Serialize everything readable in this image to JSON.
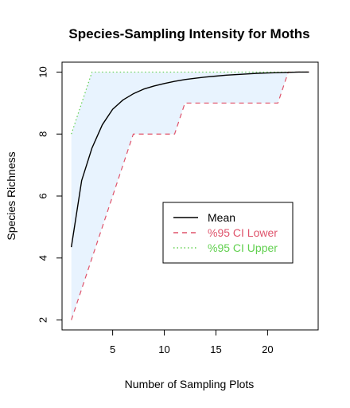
{
  "chart_data": {
    "type": "line",
    "title": "Species-Sampling Intensity for Moths",
    "xlabel": "Number of Sampling Plots",
    "ylabel": "Species Richness",
    "xlim": [
      0.1,
      24.9
    ],
    "ylim": [
      1.68,
      10.32
    ],
    "x_ticks": [
      5,
      10,
      15,
      20
    ],
    "y_ticks": [
      2,
      4,
      6,
      8,
      10
    ],
    "grid": false,
    "legend_position": "right-center",
    "ci_band_color": "#E8F3FE",
    "x": [
      1,
      2,
      3,
      4,
      5,
      6,
      7,
      8,
      9,
      10,
      11,
      12,
      13,
      14,
      15,
      16,
      17,
      18,
      19,
      20,
      21,
      22,
      23,
      24
    ],
    "series": [
      {
        "name": "Mean",
        "color": "#000000",
        "dash": "solid",
        "values": [
          4.35,
          6.5,
          7.55,
          8.3,
          8.8,
          9.1,
          9.3,
          9.45,
          9.55,
          9.63,
          9.7,
          9.76,
          9.8,
          9.84,
          9.87,
          9.9,
          9.92,
          9.94,
          9.96,
          9.97,
          9.98,
          9.99,
          10.0,
          10.0
        ]
      },
      {
        "name": "%95 CI Lower",
        "color": "#DF536B",
        "dash": "dashed",
        "values": [
          2,
          3,
          4,
          5,
          6,
          7,
          8,
          8,
          8,
          8,
          8,
          9,
          9,
          9,
          9,
          9,
          9,
          9,
          9,
          9,
          9,
          10,
          10,
          10
        ]
      },
      {
        "name": "%95 CI Upper",
        "color": "#61D04F",
        "dash": "dotted",
        "values": [
          8,
          9,
          10,
          10,
          10,
          10,
          10,
          10,
          10,
          10,
          10,
          10,
          10,
          10,
          10,
          10,
          10,
          10,
          10,
          10,
          10,
          10,
          10,
          10
        ]
      }
    ]
  }
}
